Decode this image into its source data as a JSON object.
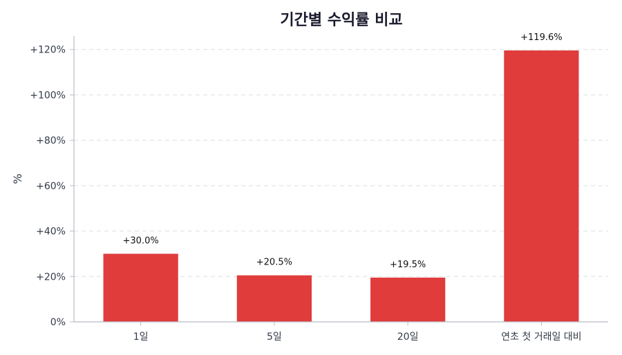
{
  "chart_data": {
    "type": "bar",
    "title": "기간별 수익률 비교",
    "xlabel": "",
    "ylabel": "%",
    "categories": [
      "1일",
      "5일",
      "20일",
      "연초 첫 거래일 대비"
    ],
    "values": [
      30.0,
      20.5,
      19.5,
      119.6
    ],
    "data_labels": [
      "+30.0%",
      "+20.5%",
      "+19.5%",
      "+119.6%"
    ],
    "ylim": [
      0,
      126
    ],
    "yticks": [
      0,
      20,
      40,
      60,
      80,
      100,
      120
    ],
    "ytick_labels": [
      "0%",
      "+20%",
      "+40%",
      "+60%",
      "+80%",
      "+100%",
      "+120%"
    ],
    "grid": "horizontal dashed",
    "bar_color": "#e03c3c"
  }
}
